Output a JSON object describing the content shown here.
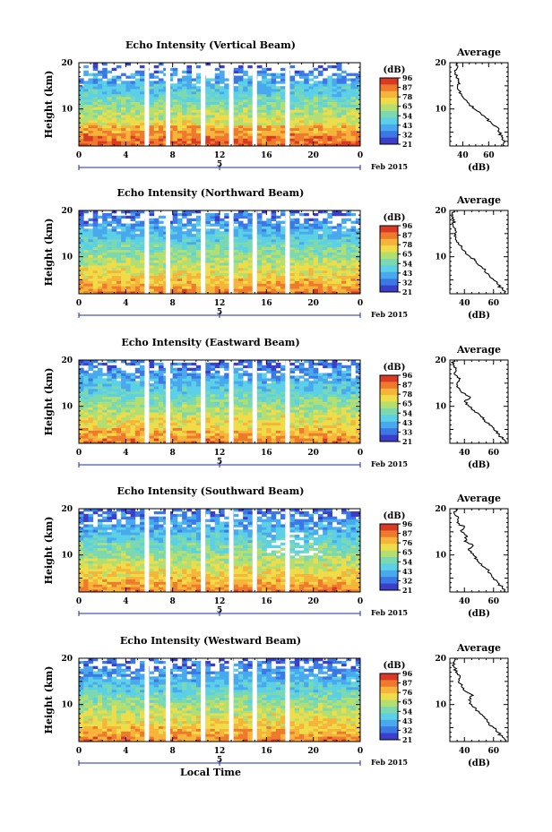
{
  "colors": {
    "colormap": [
      "#3a3ec8",
      "#3b78e6",
      "#49a9ee",
      "#5bd0e6",
      "#7ad9b0",
      "#b3df72",
      "#eedd48",
      "#f6b43a",
      "#ef7a2e",
      "#d93a26"
    ],
    "axis": "#000000",
    "line": "#000000"
  },
  "chart_data": [
    {
      "type": "heatmap",
      "title": "Echo Intensity (Vertical Beam)",
      "ylabel": "Height (km)",
      "xticks": [
        "0",
        "4",
        "8",
        "12",
        "16",
        "20",
        "0"
      ],
      "xlim": [
        0,
        24
      ],
      "yticks": [
        "10",
        "20"
      ],
      "ylim": [
        2,
        20
      ],
      "date_tick": "5",
      "date_unit": "Feb 2015",
      "colorbar": {
        "unit": "(dB)",
        "ticks": [
          "96",
          "87",
          "78",
          "65",
          "54",
          "43",
          "32",
          "21"
        ]
      },
      "data_gaps_hours": [
        5.8,
        7.6,
        10.6,
        13.0,
        15.0,
        17.8
      ],
      "profile": {
        "title": "Average",
        "xlabel": "(dB)",
        "xticks": [
          "40",
          "60"
        ],
        "xlim": [
          30,
          75
        ],
        "yticks": [
          "10",
          "20"
        ],
        "ylim": [
          2,
          20
        ],
        "height_km": [
          2,
          3,
          4,
          5,
          6,
          7,
          8,
          9,
          10,
          11,
          12,
          13,
          14,
          15,
          16,
          17,
          18,
          19,
          20
        ],
        "value_db": [
          72,
          73,
          70,
          68,
          67,
          62,
          58,
          54,
          49,
          45,
          42,
          39,
          37,
          36,
          37,
          35,
          34,
          36,
          35
        ]
      }
    },
    {
      "type": "heatmap",
      "title": "Echo Intensity (Northward Beam)",
      "ylabel": "Height (km)",
      "xticks": [
        "0",
        "4",
        "8",
        "12",
        "16",
        "20",
        "0"
      ],
      "xlim": [
        0,
        24
      ],
      "yticks": [
        "10",
        "20"
      ],
      "ylim": [
        2,
        20
      ],
      "date_tick": "5",
      "date_unit": "Feb 2015",
      "colorbar": {
        "unit": "(dB)",
        "ticks": [
          "96",
          "87",
          "78",
          "65",
          "54",
          "43",
          "32",
          "21"
        ]
      },
      "data_gaps_hours": [
        5.8,
        7.6,
        10.6,
        13.0,
        15.0,
        17.8
      ],
      "profile": {
        "title": "Average",
        "xlabel": "(dB)",
        "xticks": [
          "40",
          "60"
        ],
        "xlim": [
          30,
          70
        ],
        "yticks": [
          "10",
          "20"
        ],
        "ylim": [
          2,
          20
        ],
        "height_km": [
          2,
          3,
          4,
          5,
          6,
          7,
          8,
          9,
          10,
          11,
          12,
          13,
          14,
          15,
          16,
          17,
          18,
          19,
          20
        ],
        "value_db": [
          68,
          66,
          63,
          60,
          57,
          54,
          51,
          48,
          44,
          41,
          38,
          36,
          34,
          33,
          34,
          32,
          33,
          32,
          33
        ]
      }
    },
    {
      "type": "heatmap",
      "title": "Echo Intensity (Eastward Beam)",
      "ylabel": "Height (km)",
      "xticks": [
        "0",
        "4",
        "8",
        "12",
        "16",
        "20",
        "0"
      ],
      "xlim": [
        0,
        24
      ],
      "yticks": [
        "10",
        "20"
      ],
      "ylim": [
        2,
        20
      ],
      "date_tick": "5",
      "date_unit": "Feb 2015",
      "colorbar": {
        "unit": "(dB)",
        "ticks": [
          "96",
          "87",
          "78",
          "65",
          "54",
          "43",
          "33",
          "21"
        ]
      },
      "data_gaps_hours": [
        5.8,
        7.6,
        10.6,
        13.0,
        15.0,
        17.8
      ],
      "profile": {
        "title": "Average",
        "xlabel": "(dB)",
        "xticks": [
          "40",
          "60"
        ],
        "xlim": [
          30,
          70
        ],
        "yticks": [
          "10",
          "20"
        ],
        "ylim": [
          2,
          20
        ],
        "height_km": [
          2,
          3,
          4,
          5,
          6,
          7,
          8,
          9,
          10,
          11,
          12,
          13,
          14,
          15,
          16,
          17,
          18,
          19,
          20
        ],
        "value_db": [
          68,
          66,
          64,
          60,
          57,
          54,
          51,
          47,
          43,
          40,
          44,
          38,
          36,
          35,
          37,
          33,
          34,
          32,
          33
        ]
      }
    },
    {
      "type": "heatmap",
      "title": "Echo Intensity (Southward Beam)",
      "ylabel": "Height (km)",
      "xticks": [
        "0",
        "4",
        "8",
        "12",
        "16",
        "20",
        "0"
      ],
      "xlim": [
        0,
        24
      ],
      "yticks": [
        "10",
        "20"
      ],
      "ylim": [
        2,
        20
      ],
      "date_tick": "5",
      "date_unit": "Feb 2015",
      "colorbar": {
        "unit": "(dB)",
        "ticks": [
          "96",
          "87",
          "76",
          "65",
          "54",
          "43",
          "32",
          "21"
        ]
      },
      "data_gaps_hours": [
        5.8,
        7.6,
        10.6,
        13.0,
        15.0,
        17.8
      ],
      "profile": {
        "title": "Average",
        "xlabel": "(dB)",
        "xticks": [
          "40",
          "60"
        ],
        "xlim": [
          30,
          70
        ],
        "yticks": [
          "10",
          "20"
        ],
        "ylim": [
          2,
          20
        ],
        "height_km": [
          2,
          3,
          4,
          5,
          6,
          7,
          8,
          9,
          10,
          11,
          12,
          13,
          14,
          15,
          16,
          17,
          18,
          19,
          20
        ],
        "value_db": [
          68,
          66,
          63,
          60,
          58,
          55,
          52,
          49,
          46,
          43,
          46,
          40,
          42,
          38,
          40,
          35,
          36,
          33,
          34
        ]
      }
    },
    {
      "type": "heatmap",
      "title": "Echo Intensity (Westward Beam)",
      "ylabel": "Height (km)",
      "xlabel": "Local Time",
      "xticks": [
        "0",
        "4",
        "8",
        "12",
        "16",
        "20",
        "0"
      ],
      "xlim": [
        0,
        24
      ],
      "yticks": [
        "10",
        "20"
      ],
      "ylim": [
        2,
        20
      ],
      "date_tick": "5",
      "date_unit": "Feb 2015",
      "colorbar": {
        "unit": "(dB)",
        "ticks": [
          "96",
          "87",
          "76",
          "65",
          "54",
          "43",
          "32",
          "21"
        ]
      },
      "data_gaps_hours": [
        5.8,
        7.6,
        10.6,
        13.0,
        15.0,
        17.8
      ],
      "profile": {
        "title": "Average",
        "xlabel": "(dB)",
        "xticks": [
          "40",
          "60"
        ],
        "xlim": [
          30,
          70
        ],
        "yticks": [
          "10",
          "20"
        ],
        "ylim": [
          2,
          20
        ],
        "height_km": [
          2,
          3,
          4,
          5,
          6,
          7,
          8,
          9,
          10,
          11,
          12,
          13,
          14,
          15,
          16,
          17,
          18,
          19,
          20
        ],
        "value_db": [
          68,
          66,
          63,
          60,
          57,
          54,
          51,
          48,
          45,
          43,
          46,
          40,
          38,
          36,
          37,
          34,
          33,
          32,
          33
        ]
      }
    }
  ]
}
